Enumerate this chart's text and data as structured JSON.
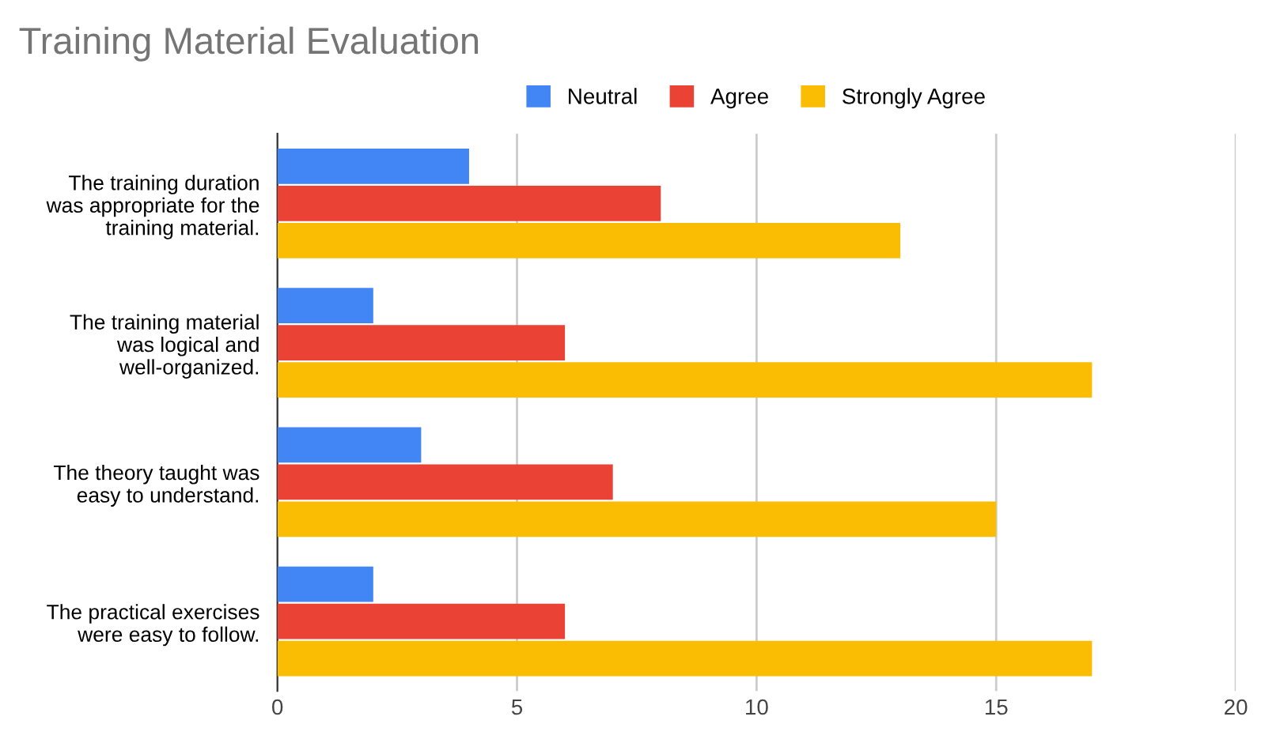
{
  "chart_data": {
    "type": "bar",
    "orientation": "horizontal",
    "title": "Training Material Evaluation",
    "categories": [
      "The training duration\nwas appropriate for the\ntraining material.",
      "The training material\nwas logical and\nwell-organized.",
      "The theory taught was\neasy to understand.",
      "The practical exercises\nwere easy to follow."
    ],
    "series": [
      {
        "name": "Neutral",
        "color": "#4285f4",
        "values": [
          4,
          2,
          3,
          2
        ]
      },
      {
        "name": "Agree",
        "color": "#ea4335",
        "values": [
          8,
          6,
          7,
          6
        ]
      },
      {
        "name": "Strongly Agree",
        "color": "#fbbc04",
        "values": [
          13,
          17,
          15,
          17
        ]
      }
    ],
    "xlim": [
      0,
      20
    ],
    "xticks": [
      0,
      5,
      10,
      15,
      20
    ],
    "grid": "x",
    "legend": "top"
  }
}
